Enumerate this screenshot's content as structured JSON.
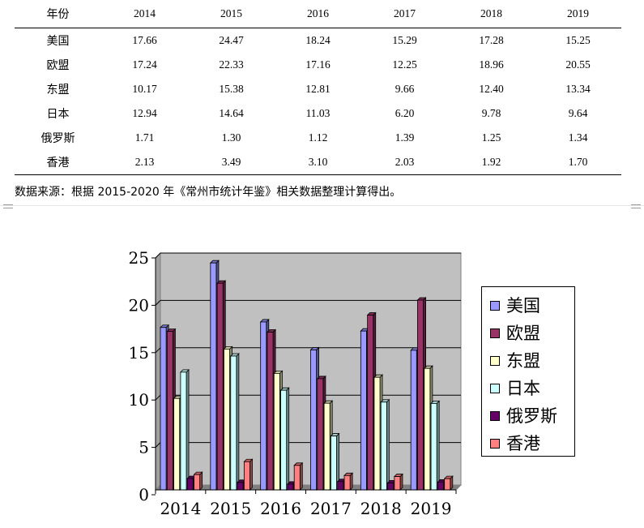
{
  "table": {
    "header": [
      "年份",
      "2014",
      "2015",
      "2016",
      "2017",
      "2018",
      "2019"
    ],
    "rows": [
      [
        "美国",
        "17.66",
        "24.47",
        "18.24",
        "15.29",
        "17.28",
        "15.25"
      ],
      [
        "欧盟",
        "17.24",
        "22.33",
        "17.16",
        "12.25",
        "18.96",
        "20.55"
      ],
      [
        "东盟",
        "10.17",
        "15.38",
        "12.81",
        "9.66",
        "12.40",
        "13.34"
      ],
      [
        "日本",
        "12.94",
        "14.64",
        "11.03",
        "6.20",
        "9.78",
        "9.64"
      ],
      [
        "俄罗斯",
        "1.71",
        "1.30",
        "1.12",
        "1.39",
        "1.25",
        "1.34"
      ],
      [
        "香港",
        "2.13",
        "3.49",
        "3.10",
        "2.03",
        "1.92",
        "1.70"
      ]
    ]
  },
  "source_note": "数据来源：根据 2015-2020 年《常州市统计年鉴》相关数据整理计算得出。",
  "chart_data": {
    "type": "bar",
    "categories": [
      "2014",
      "2015",
      "2016",
      "2017",
      "2018",
      "2019"
    ],
    "series": [
      {
        "name": "美国",
        "values": [
          17.66,
          24.47,
          18.24,
          15.29,
          17.28,
          15.25
        ],
        "color": "#9999ff"
      },
      {
        "name": "欧盟",
        "values": [
          17.24,
          22.33,
          17.16,
          12.25,
          18.96,
          20.55
        ],
        "color": "#993366"
      },
      {
        "name": "东盟",
        "values": [
          10.17,
          15.38,
          12.81,
          9.66,
          12.4,
          13.34
        ],
        "color": "#ffffcc"
      },
      {
        "name": "日本",
        "values": [
          12.94,
          14.64,
          11.03,
          6.2,
          9.78,
          9.64
        ],
        "color": "#ccffff"
      },
      {
        "name": "俄罗斯",
        "values": [
          1.71,
          1.3,
          1.12,
          1.39,
          1.25,
          1.34
        ],
        "color": "#660066"
      },
      {
        "name": "香港",
        "values": [
          2.13,
          3.49,
          3.1,
          2.03,
          1.92,
          1.7
        ],
        "color": "#ff8080"
      }
    ],
    "y_ticks": [
      "0",
      "5",
      "10",
      "15",
      "20",
      "25"
    ],
    "ylim": [
      0,
      25
    ],
    "grid": true,
    "legend": "right",
    "plot_background": "#c0c0c0",
    "style": "3d-clustered-column"
  }
}
